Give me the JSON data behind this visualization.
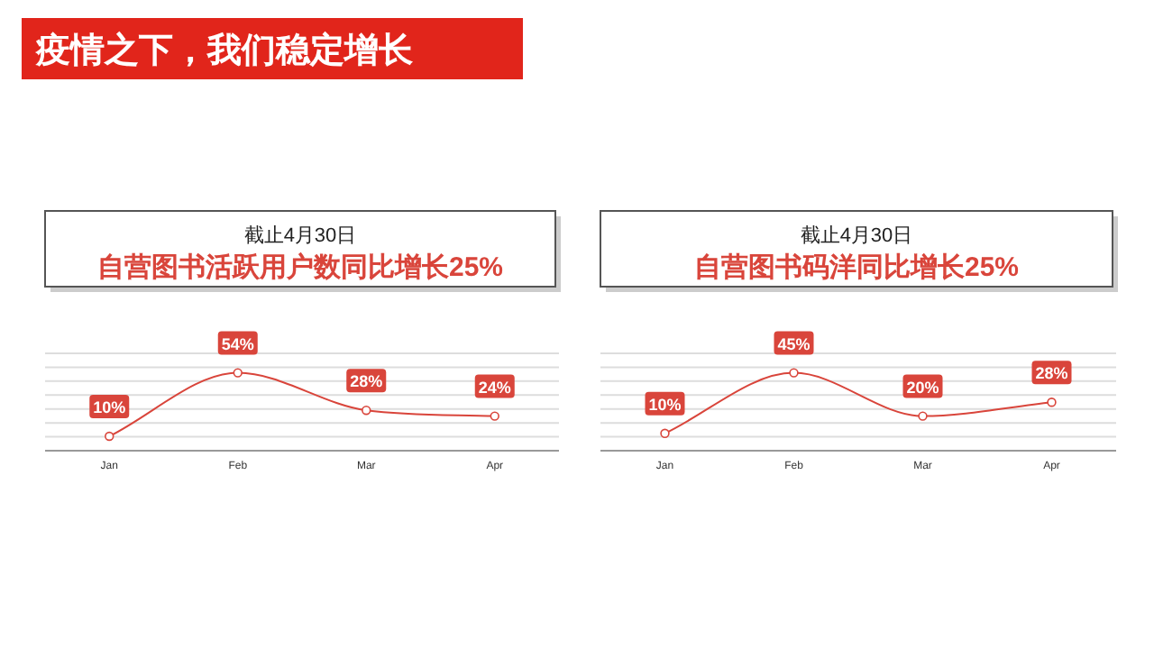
{
  "chart_data": [
    {
      "type": "line",
      "title": "自营图书活跃用户数同比增长25%",
      "subtitle": "截止4月30日",
      "annotations": [
        "疫情之下，我们稳定增长"
      ],
      "categories": [
        "Jan",
        "Feb",
        "Mar",
        "Apr"
      ],
      "series": [
        {
          "color": "#d9453b",
          "values": [
            10,
            54,
            28,
            24
          ],
          "value_labels": [
            "10%",
            "54%",
            "28%",
            "24%"
          ]
        }
      ],
      "grid": "y",
      "marker": "circle",
      "tick_labels": "x"
    },
    {
      "type": "line",
      "title": "自营图书码洋同比增长25%",
      "subtitle": "截止4月30日",
      "categories": [
        "Jan",
        "Feb",
        "Mar",
        "Apr"
      ],
      "series": [
        {
          "color": "#d9453b",
          "values": [
            10,
            45,
            20,
            28
          ],
          "value_labels": [
            "10%",
            "45%",
            "20%",
            "28%"
          ]
        }
      ],
      "grid": "y",
      "marker": "circle",
      "tick_labels": "x"
    }
  ]
}
